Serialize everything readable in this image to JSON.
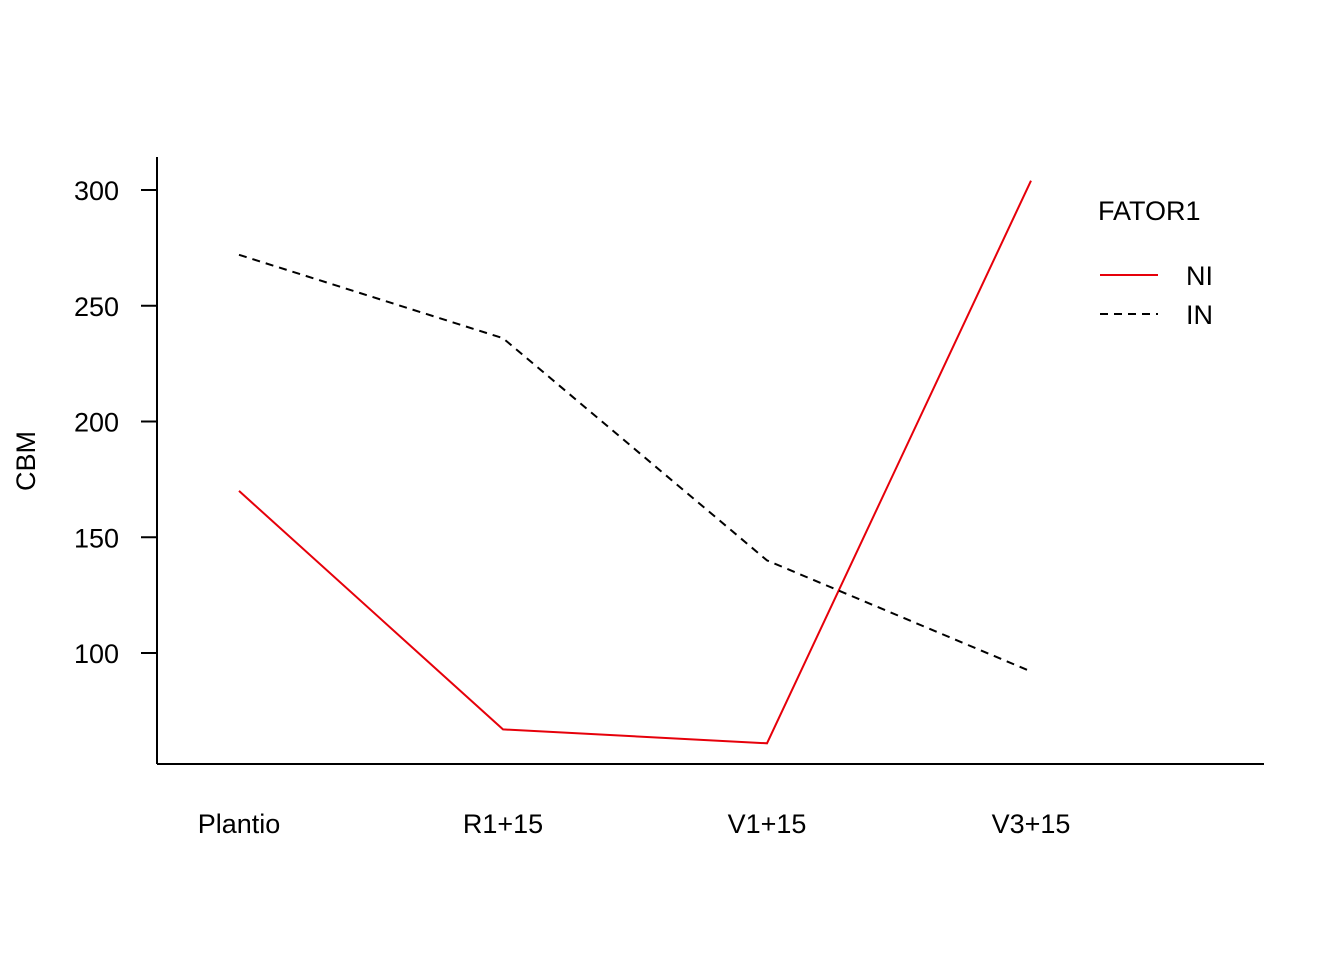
{
  "chart_data": {
    "type": "line",
    "categories": [
      "Plantio",
      "R1+15",
      "V1+15",
      "V3+15"
    ],
    "ylabel": "CBM",
    "xlabel": "",
    "y_ticks": [
      100,
      150,
      200,
      250,
      300
    ],
    "ylim": [
      52,
      314
    ],
    "legend": {
      "title": "FATOR1",
      "position": "top-right"
    },
    "series": [
      {
        "name": "NI",
        "values": [
          170,
          67,
          61,
          304
        ],
        "color": "#e6000a",
        "style": "solid"
      },
      {
        "name": "IN",
        "values": [
          272,
          236,
          140,
          92
        ],
        "color": "#000000",
        "style": "dashed"
      }
    ]
  }
}
